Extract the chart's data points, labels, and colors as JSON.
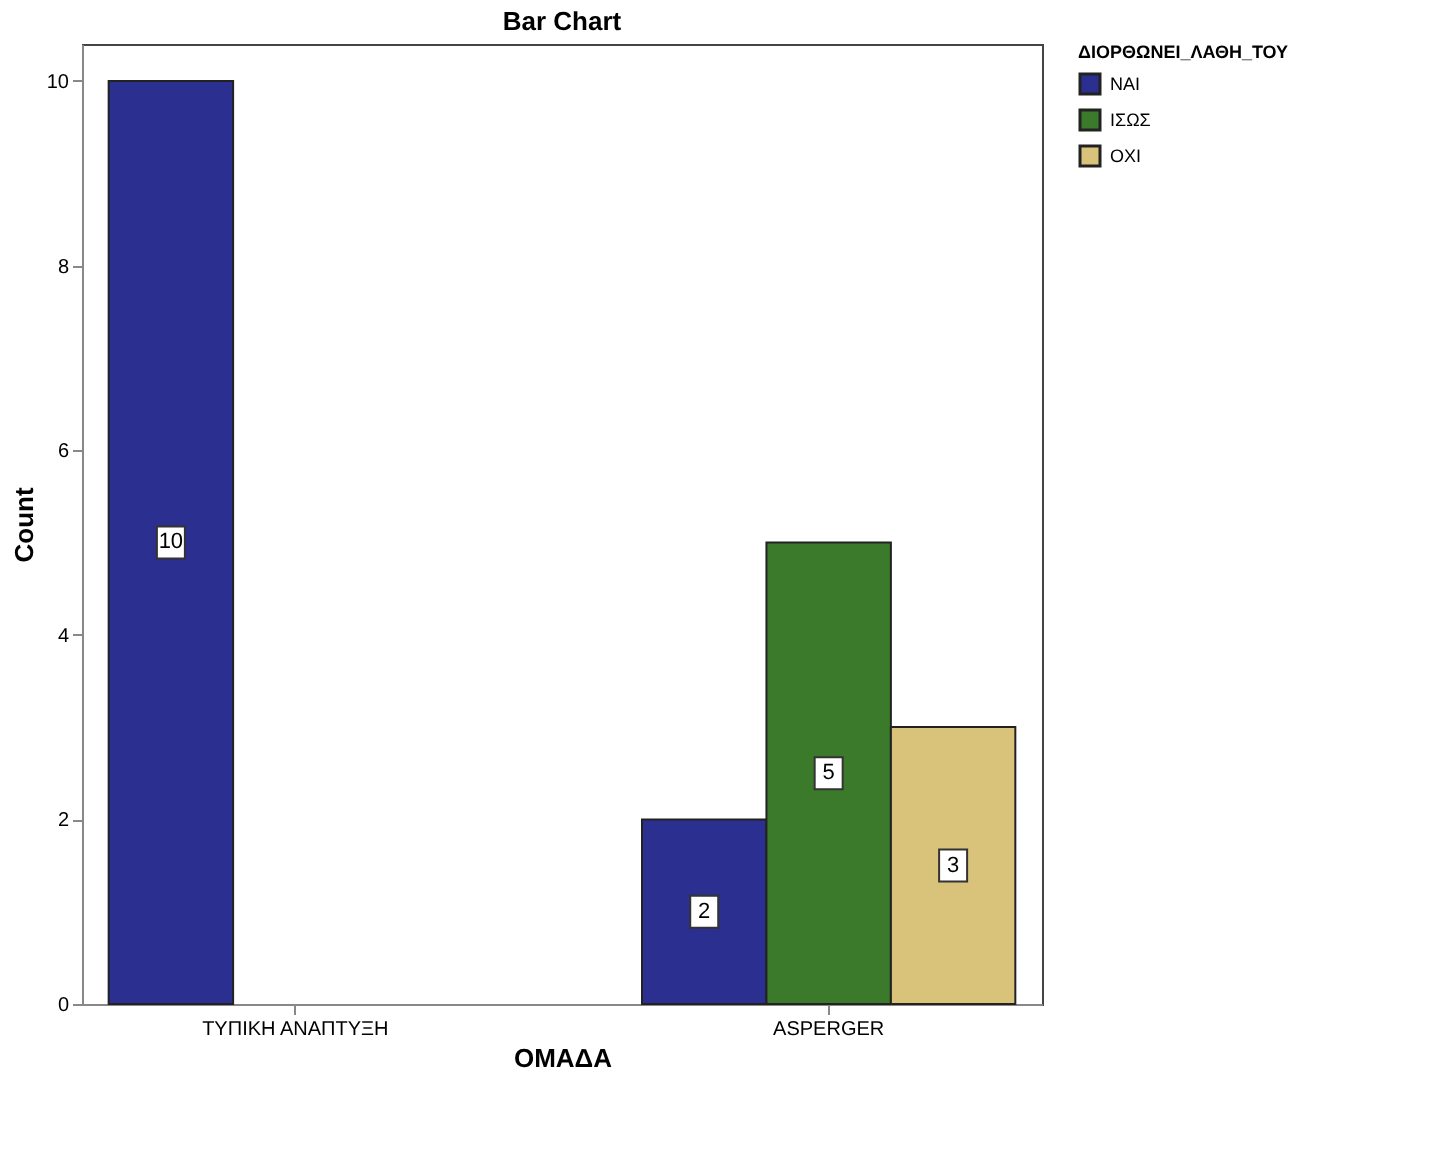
{
  "chart_data": {
    "type": "bar",
    "title": "Bar Chart",
    "xlabel": "ΟΜΑΔΑ",
    "ylabel": "Count",
    "legend_title": "ΔΙΟΡΘΩΝΕΙ_ΛΑΘΗ_ΤΟΥ",
    "categories": [
      "ΤΥΠΙΚΗ ΑΝΑΠΤΥΞΗ",
      "ASPERGER"
    ],
    "series": [
      {
        "name": "ΝΑΙ",
        "color": "#2b2f8f",
        "values": [
          10,
          2
        ]
      },
      {
        "name": "ΙΣΩΣ",
        "color": "#3b7a2a",
        "values": [
          null,
          5
        ]
      },
      {
        "name": "ΟΧΙ",
        "color": "#d9c27a",
        "values": [
          null,
          3
        ]
      }
    ],
    "ylim": [
      0,
      10.4
    ],
    "yticks": [
      0,
      2,
      4,
      6,
      8,
      10
    ],
    "grid": false,
    "legend": "top right",
    "data_labels": true
  }
}
